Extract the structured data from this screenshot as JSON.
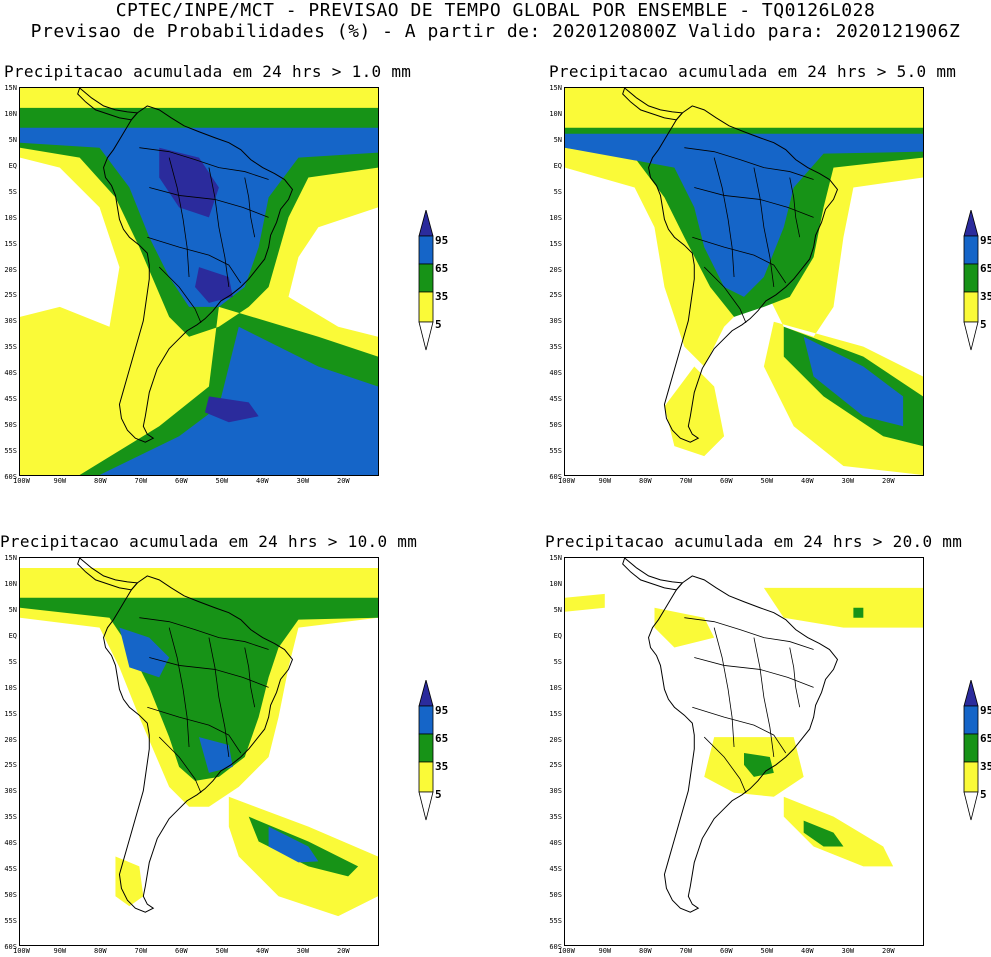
{
  "header": {
    "line1": "CPTEC/INPE/MCT - PREVISAO DE TEMPO GLOBAL POR ENSEMBLE - TQ0126L028",
    "line2": "Previsao de Probabilidades (%) -  A partir de: 2020120800Z  Valido para: 2020121906Z"
  },
  "panels": [
    {
      "title": "Precipitacao acumulada em 24 hrs > 1.0 mm"
    },
    {
      "title": "Precipitacao acumulada em 24 hrs > 5.0 mm"
    },
    {
      "title": "Precipitacao acumulada em 24 hrs > 10.0 mm"
    },
    {
      "title": "Precipitacao acumulada em 24 hrs > 20.0 mm"
    }
  ],
  "lat_labels": [
    "15N",
    "10N",
    "5N",
    "EQ",
    "5S",
    "10S",
    "15S",
    "20S",
    "25S",
    "30S",
    "35S",
    "40S",
    "45S",
    "50S",
    "55S",
    "60S"
  ],
  "lon_labels": [
    "100W",
    "90W",
    "80W",
    "70W",
    "60W",
    "50W",
    "40W",
    "30W",
    "20W"
  ],
  "legend": {
    "labels": [
      "95",
      "65",
      "35",
      "5"
    ],
    "colors": {
      "p95": "#2b2b9c",
      "p65": "#1565c8",
      "p35": "#179317",
      "p5": "#fafa38",
      "below": "#ffffff"
    }
  }
}
